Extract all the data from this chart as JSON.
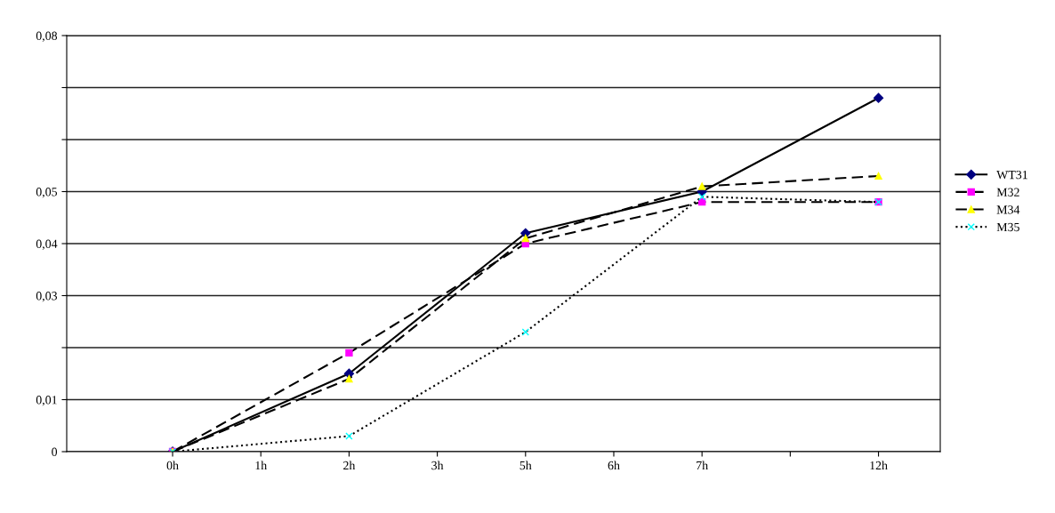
{
  "chart_data": {
    "type": "line",
    "categories": [
      "0h",
      "1h",
      "2h",
      "3h",
      "5h",
      "6h",
      "7h",
      null,
      "12h"
    ],
    "ylim": [
      0,
      0.08
    ],
    "yticks": [
      {
        "value": 0,
        "label": "0"
      },
      {
        "value": 0.01,
        "label": "0,01"
      },
      {
        "value": 0.02,
        "label": null
      },
      {
        "value": 0.03,
        "label": "0,03"
      },
      {
        "value": 0.04,
        "label": "0,04"
      },
      {
        "value": 0.05,
        "label": "0,05"
      },
      {
        "value": 0.06,
        "label": null
      },
      {
        "value": 0.07,
        "label": null
      },
      {
        "value": 0.08,
        "label": "0,08"
      }
    ],
    "grid": "y",
    "legend": "right",
    "series": [
      {
        "name": "WT31",
        "color": "#000080",
        "marker": "diamond",
        "line_style": "solid",
        "values": [
          0,
          null,
          0.015,
          null,
          0.042,
          null,
          0.05,
          null,
          0.068
        ]
      },
      {
        "name": "M32",
        "color": "#ff00ff",
        "marker": "square",
        "line_style": "dashed",
        "values": [
          0,
          null,
          0.019,
          null,
          0.04,
          null,
          0.048,
          null,
          0.048
        ]
      },
      {
        "name": "M34",
        "color": "#ffff00",
        "marker": "triangle",
        "line_style": "dashed",
        "values": [
          0,
          null,
          0.014,
          null,
          0.041,
          null,
          0.051,
          null,
          0.053
        ]
      },
      {
        "name": "M35",
        "color": "#00ffff",
        "marker": "cross",
        "line_style": "dotted",
        "values": [
          0,
          null,
          0.003,
          null,
          0.023,
          null,
          0.049,
          null,
          0.048
        ]
      }
    ]
  }
}
